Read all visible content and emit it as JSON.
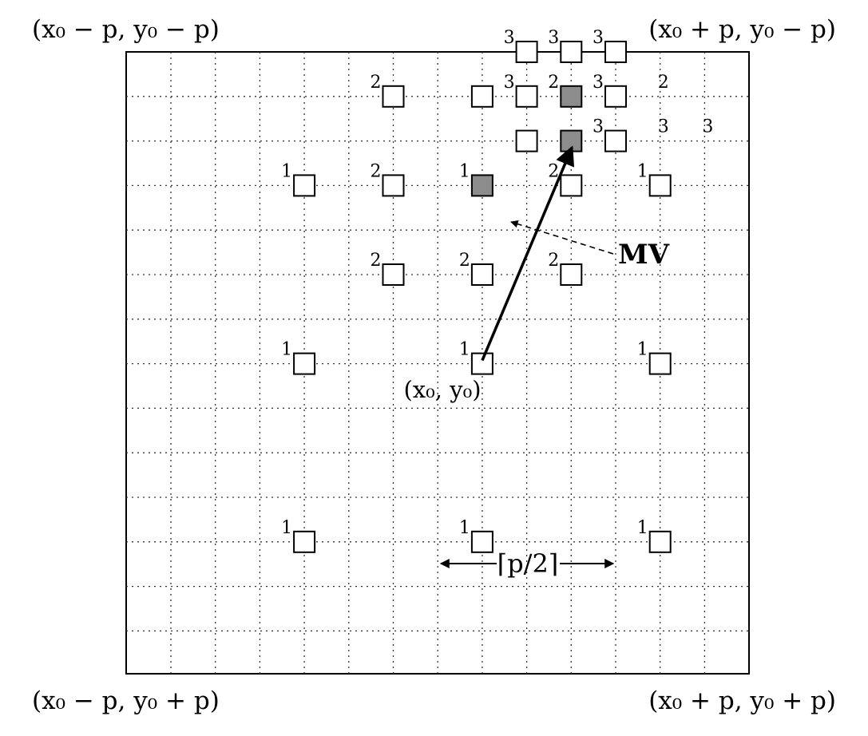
{
  "corner_labels": {
    "top_left": "(x₀ − p, y₀ − p)",
    "top_right": "(x₀ + p, y₀ − p)",
    "bottom_left": "(x₀ − p, y₀ + p)",
    "bottom_right": "(x₀ + p, y₀ + p)"
  },
  "origin_label": "(x₀, y₀)",
  "mv_label": "MV",
  "step_label": "⌈p/2⌉",
  "colors": {
    "line": "#000000",
    "highlight_fill": "#8c8c8c",
    "grid": "#333333"
  },
  "search_points": [
    {
      "label": "1",
      "col": 3,
      "row": 3,
      "highlighted": false
    },
    {
      "label": "1",
      "col": 7,
      "row": 3,
      "highlighted": true
    },
    {
      "label": "1",
      "col": 11,
      "row": 3,
      "highlighted": false
    },
    {
      "label": "1",
      "col": 3,
      "row": 7,
      "highlighted": false
    },
    {
      "label": "1",
      "col": 7,
      "row": 7,
      "highlighted": false
    },
    {
      "label": "1",
      "col": 11,
      "row": 7,
      "highlighted": false
    },
    {
      "label": "1",
      "col": 3,
      "row": 11,
      "highlighted": false
    },
    {
      "label": "1",
      "col": 7,
      "row": 11,
      "highlighted": false
    },
    {
      "label": "1",
      "col": 11,
      "row": 11,
      "highlighted": false
    },
    {
      "label": "2",
      "col": 5,
      "row": 1,
      "highlighted": false
    },
    {
      "label": "",
      "col": 7,
      "row": 1,
      "highlighted": false
    },
    {
      "label": "2",
      "col": 9,
      "row": 1,
      "highlighted": true
    },
    {
      "label": "2",
      "col": 5,
      "row": 3,
      "highlighted": false
    },
    {
      "label": "2",
      "col": 9,
      "row": 3,
      "highlighted": false
    },
    {
      "label": "2",
      "col": 5,
      "row": 5,
      "highlighted": false
    },
    {
      "label": "2",
      "col": 7,
      "row": 5,
      "highlighted": false
    },
    {
      "label": "2",
      "col": 9,
      "row": 5,
      "highlighted": false
    },
    {
      "label": "3",
      "col": 8,
      "row": 0,
      "highlighted": false
    },
    {
      "label": "3",
      "col": 9,
      "row": 0,
      "highlighted": false
    },
    {
      "label": "3",
      "col": 10,
      "row": 0,
      "highlighted": false
    },
    {
      "label": "3",
      "col": 8,
      "row": 1,
      "highlighted": false
    },
    {
      "label": "3",
      "col": 10,
      "row": 1,
      "highlighted": false
    },
    {
      "label": "",
      "col": 8,
      "row": 2,
      "highlighted": false
    },
    {
      "label": "",
      "col": 9,
      "row": 2,
      "highlighted": true
    },
    {
      "label": "3",
      "col": 10,
      "row": 2,
      "highlighted": false
    }
  ],
  "extra_labels": [
    {
      "label": "2",
      "col": 11,
      "row": 1
    },
    {
      "label": "3",
      "col": 11,
      "row": 2
    },
    {
      "label": "3",
      "col": 12,
      "row": 2
    }
  ],
  "motion_vector": {
    "from": {
      "col": 7,
      "row": 7
    },
    "to": {
      "col": 9,
      "row": 2
    }
  }
}
